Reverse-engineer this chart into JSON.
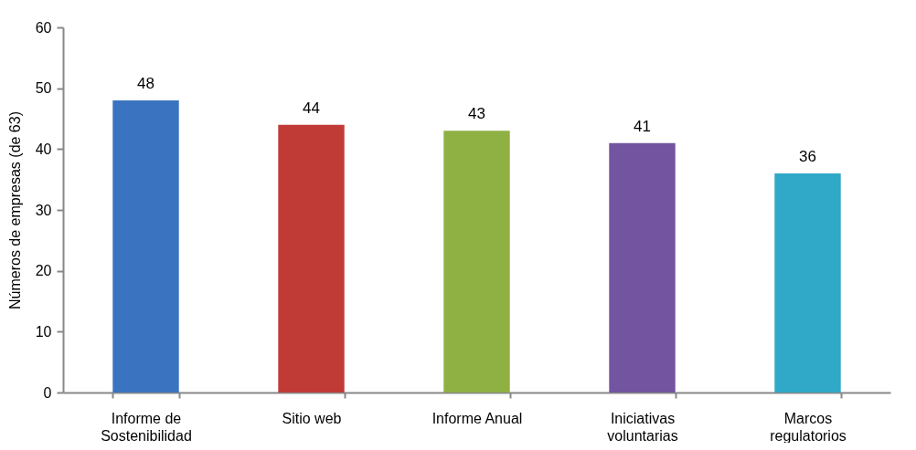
{
  "chart_data": {
    "type": "bar",
    "ylabel": "Números de empresas (de 63)",
    "categories": [
      "Informe de\nSostenibilidad",
      "Sitio web",
      "Informe Anual",
      "Iniciativas\nvoluntarias",
      "Marcos\nregulatorios"
    ],
    "values": [
      48,
      44,
      43,
      41,
      36
    ],
    "colors": [
      "#3a74c0",
      "#c03a36",
      "#8fb043",
      "#7254a0",
      "#30a8c8"
    ],
    "ylim": [
      0,
      60
    ],
    "yticks": [
      0,
      10,
      20,
      30,
      40,
      50,
      60
    ],
    "grid": false,
    "data_labels": true
  }
}
